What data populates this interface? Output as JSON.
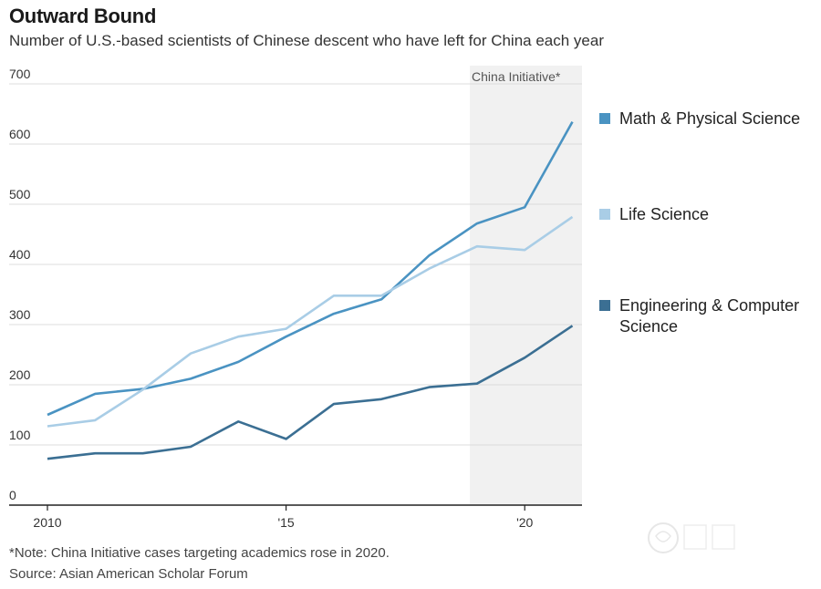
{
  "header": {
    "title": "Outward Bound",
    "subtitle": "Number of U.S.-based scientists of Chinese descent who have left for China each year"
  },
  "footer": {
    "note": "*Note: China Initiative cases targeting academics rose in 2020.",
    "source": "Source: Asian American Scholar Forum"
  },
  "chart_data": {
    "type": "line",
    "title": "Outward Bound",
    "subtitle": "Number of U.S.-based scientists of Chinese descent who have left for China each year",
    "x": [
      2010,
      2011,
      2012,
      2013,
      2014,
      2015,
      2016,
      2017,
      2018,
      2019,
      2020,
      2021
    ],
    "xlim": [
      2010,
      2021.2
    ],
    "ylim": [
      0,
      700
    ],
    "yticks": [
      0,
      100,
      200,
      300,
      400,
      500,
      600,
      700
    ],
    "xticks": [
      {
        "value": 2010,
        "label": "2010"
      },
      {
        "value": 2015,
        "label": "'15"
      },
      {
        "value": 2020,
        "label": "'20"
      }
    ],
    "grid": true,
    "legend": "right",
    "shaded_region": {
      "label": "China Initiative*",
      "from": 2018.85,
      "to": 2021.2
    },
    "series": [
      {
        "name": "Math & Physical Science",
        "color": "#4a93c2",
        "values": [
          150,
          185,
          193,
          210,
          238,
          280,
          318,
          342,
          415,
          468,
          495,
          637
        ]
      },
      {
        "name": "Life Science",
        "color": "#a9cde6",
        "values": [
          131,
          141,
          192,
          252,
          280,
          293,
          348,
          348,
          393,
          430,
          424,
          479
        ]
      },
      {
        "name": "Engineering & Computer Science",
        "color": "#3b6f93",
        "values": [
          77,
          86,
          86,
          97,
          139,
          110,
          168,
          176,
          196,
          202,
          245,
          298
        ]
      }
    ]
  }
}
